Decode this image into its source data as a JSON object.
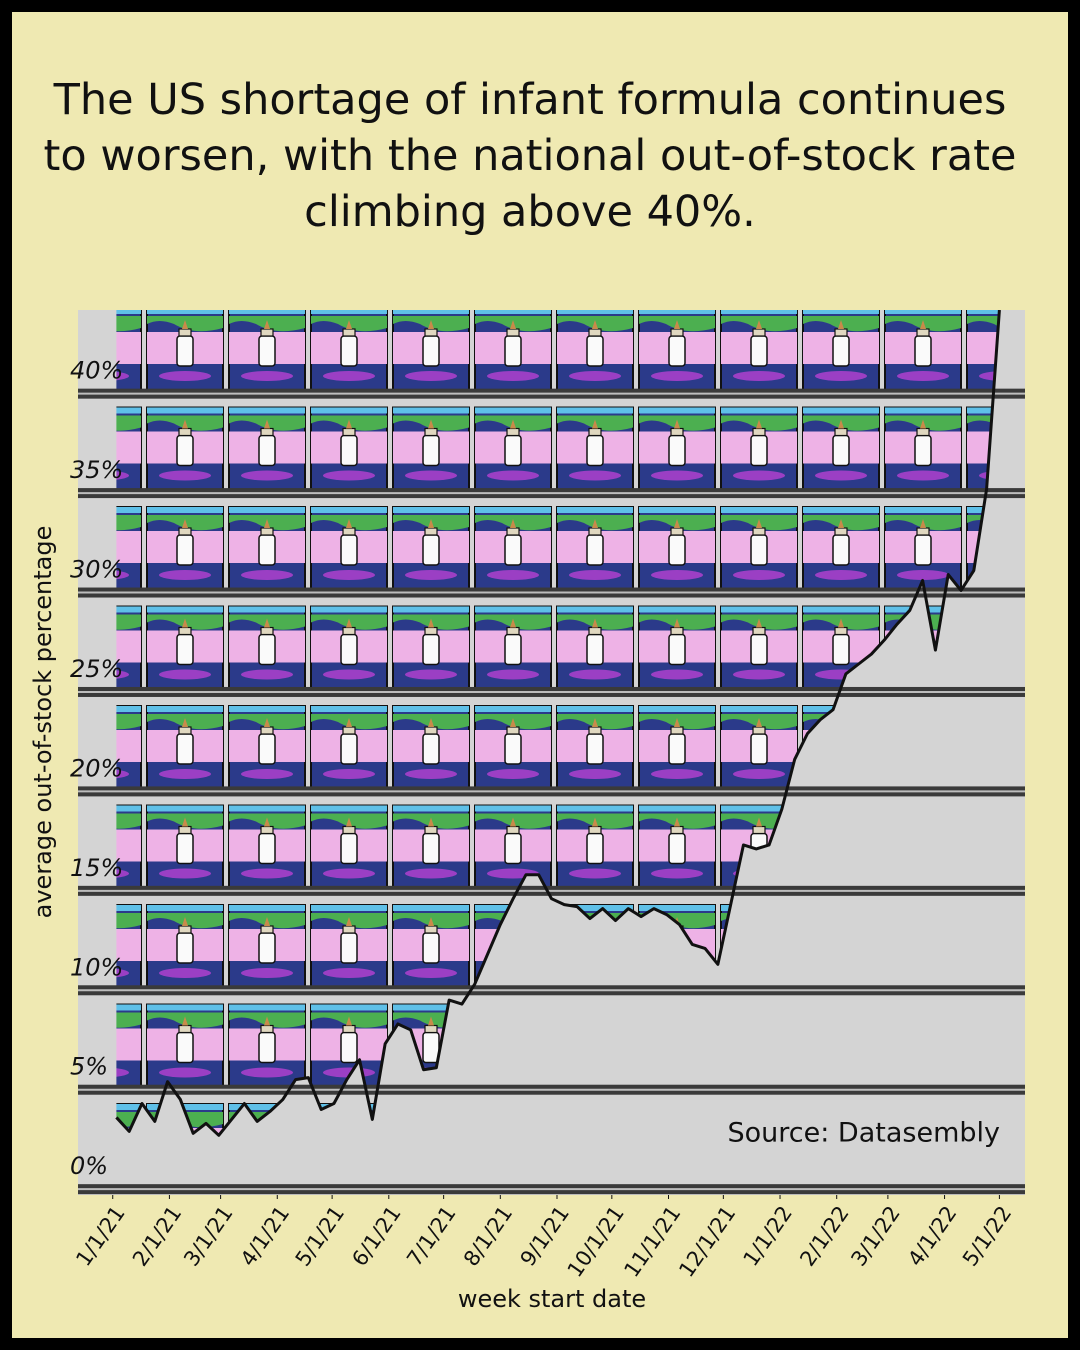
{
  "chart_data": {
    "type": "line",
    "title": "The US shortage of infant formula continues to worsen, with the national out-of-stock rate climbing above 40%.",
    "x_label": "week start date",
    "y_label": "average out-of-stock percentage",
    "source": "Source: Datasembly",
    "x": [
      "1/3/21",
      "1/10/21",
      "1/17/21",
      "1/24/21",
      "1/31/21",
      "2/7/21",
      "2/14/21",
      "2/21/21",
      "2/28/21",
      "3/7/21",
      "3/14/21",
      "3/21/21",
      "3/28/21",
      "4/4/21",
      "4/11/21",
      "4/18/21",
      "4/25/21",
      "5/2/21",
      "5/9/21",
      "5/16/21",
      "5/23/21",
      "5/30/21",
      "6/6/21",
      "6/13/21",
      "6/20/21",
      "6/27/21",
      "7/4/21",
      "7/11/21",
      "7/18/21",
      "7/25/21",
      "8/1/21",
      "8/8/21",
      "8/15/21",
      "8/22/21",
      "8/29/21",
      "9/5/21",
      "9/12/21",
      "9/19/21",
      "9/26/21",
      "10/3/21",
      "10/10/21",
      "10/17/21",
      "10/24/21",
      "10/31/21",
      "11/7/21",
      "11/14/21",
      "11/21/21",
      "11/28/21",
      "12/5/21",
      "12/12/21",
      "12/19/21",
      "12/26/21",
      "1/2/22",
      "1/9/22",
      "1/16/22",
      "1/23/22",
      "1/30/22",
      "2/6/22",
      "2/13/22",
      "2/20/22",
      "2/27/22",
      "3/6/22",
      "3/13/22",
      "3/20/22",
      "3/27/22",
      "4/3/22",
      "4/10/22",
      "4/17/22",
      "4/24/22",
      "5/1/22"
    ],
    "series": [
      {
        "name": "out-of-stock rate",
        "color": "#111111",
        "values": [
          2.5,
          1.8,
          3.2,
          2.3,
          4.3,
          3.4,
          1.7,
          2.2,
          1.6,
          2.4,
          3.2,
          2.3,
          2.8,
          3.4,
          4.4,
          4.5,
          2.9,
          3.2,
          4.4,
          5.4,
          2.4,
          6.2,
          7.2,
          6.9,
          4.9,
          5.0,
          8.4,
          8.2,
          9.2,
          10.7,
          12.2,
          13.5,
          14.7,
          14.7,
          13.5,
          13.2,
          13.1,
          12.5,
          13.0,
          12.4,
          13.0,
          12.6,
          13.0,
          12.7,
          12.2,
          11.2,
          11.0,
          10.2,
          13.2,
          16.2,
          16.0,
          16.2,
          18.0,
          20.5,
          21.8,
          22.5,
          23.0,
          24.8,
          25.3,
          25.8,
          26.5,
          27.3,
          28.0,
          29.5,
          26.0,
          29.8,
          29.0,
          30.0,
          34.1,
          43.1
        ]
      }
    ],
    "xlim": [
      "12/13/20",
      "5/15/22"
    ],
    "xticks": [
      "1/1/21",
      "2/1/21",
      "3/1/21",
      "4/1/21",
      "5/1/21",
      "6/1/21",
      "7/1/21",
      "8/1/21",
      "9/1/21",
      "10/1/21",
      "11/1/21",
      "12/1/21",
      "1/1/22",
      "2/1/22",
      "3/1/22",
      "4/1/22",
      "5/1/22"
    ],
    "ylim": [
      -1.4,
      43.1
    ],
    "yticks": [
      {
        "value": 0,
        "label": "0%"
      },
      {
        "value": 5,
        "label": "5%"
      },
      {
        "value": 10,
        "label": "10%"
      },
      {
        "value": 15,
        "label": "15%"
      },
      {
        "value": 20,
        "label": "20%"
      },
      {
        "value": 25,
        "label": "25%"
      },
      {
        "value": 30,
        "label": "30%"
      },
      {
        "value": 35,
        "label": "35%"
      },
      {
        "value": 40,
        "label": "40%"
      }
    ],
    "grid": true
  }
}
